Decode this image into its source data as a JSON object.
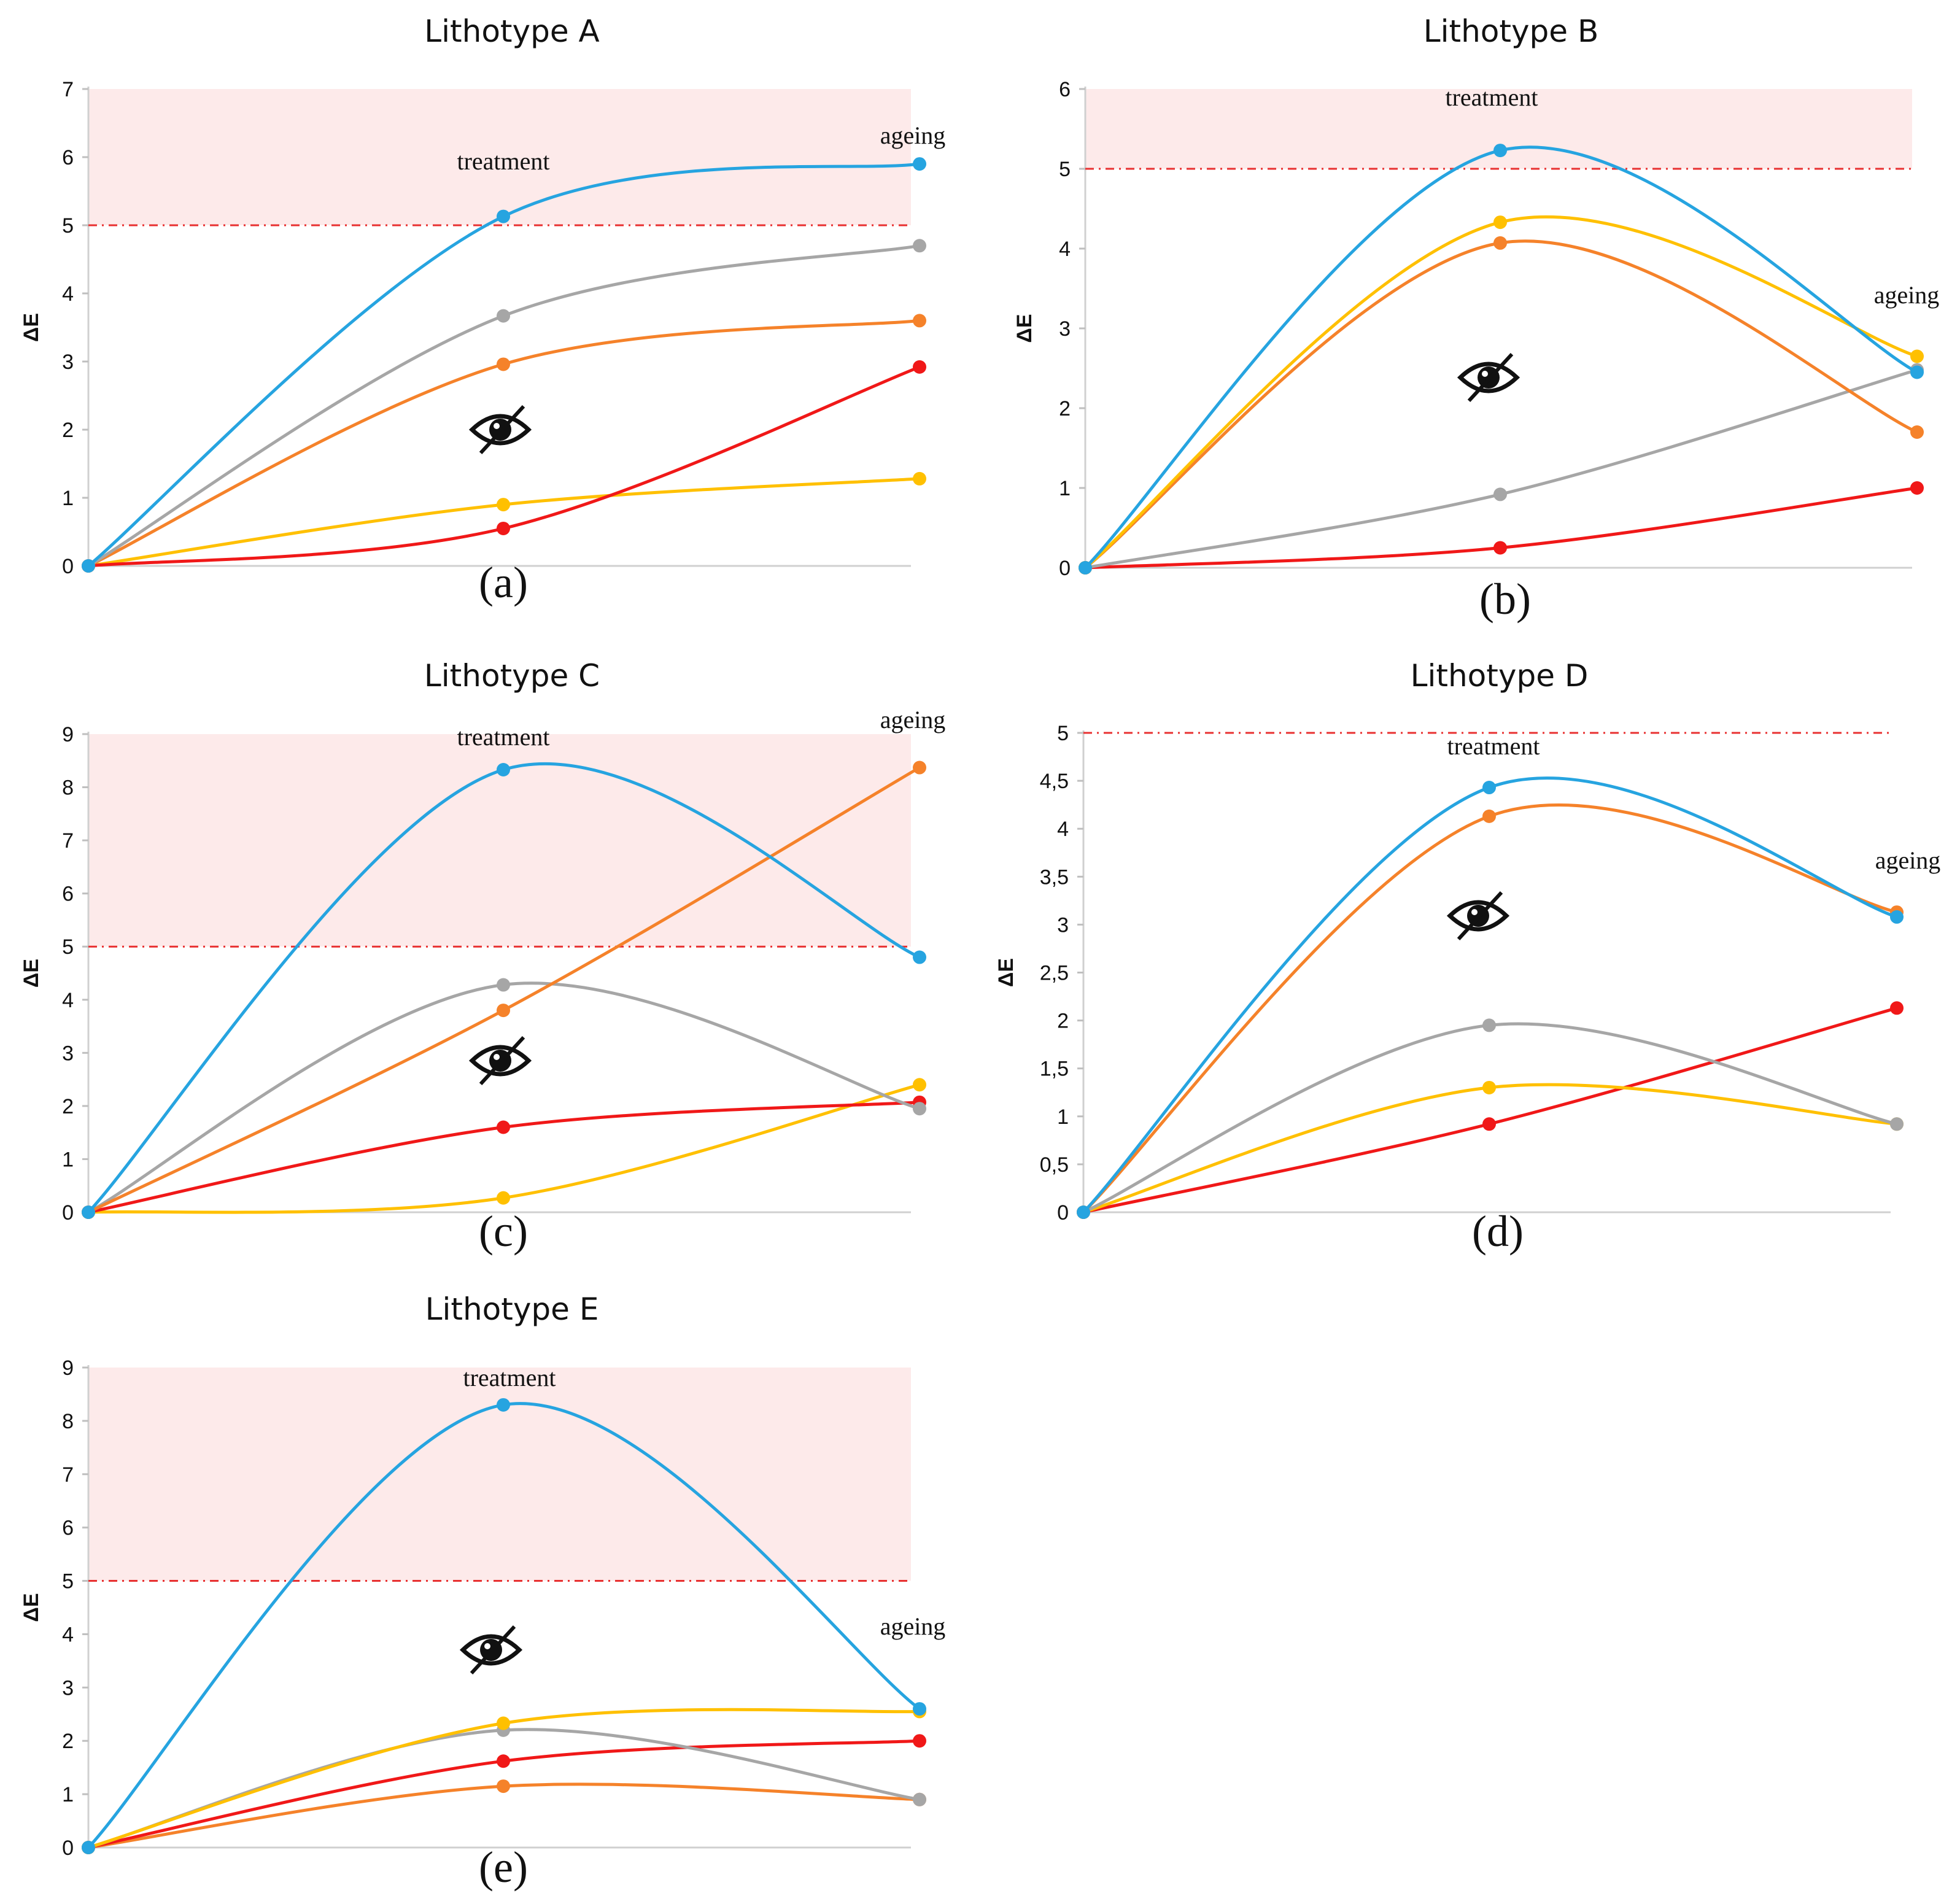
{
  "colors": {
    "blue": "#26a4e0",
    "grey": "#a6a6a6",
    "orange": "#f5822a",
    "red": "#f01818",
    "yellow": "#ffc000",
    "threshold": "#e83030",
    "zone": "#fdeaea"
  },
  "chart_data": [
    {
      "type": "line",
      "title": "Lithotype A",
      "panel_label": "(a)",
      "ylabel": "ΔE",
      "ylim": [
        0,
        7
      ],
      "yticks": [
        "0",
        "1",
        "2",
        "3",
        "4",
        "5",
        "6",
        "7"
      ],
      "threshold": 5,
      "zone": [
        5,
        7
      ],
      "x": [
        0,
        1,
        2
      ],
      "annotations": {
        "treatment": "treatment",
        "ageing": "ageing"
      },
      "icon": "eye-slash-icon",
      "series": [
        {
          "color": "blue",
          "values": [
            0,
            5.13,
            5.9
          ]
        },
        {
          "color": "grey",
          "values": [
            0,
            3.67,
            4.7
          ]
        },
        {
          "color": "orange",
          "values": [
            0,
            2.96,
            3.6
          ]
        },
        {
          "color": "red",
          "values": [
            0,
            0.55,
            2.92
          ]
        },
        {
          "color": "yellow",
          "values": [
            0,
            0.9,
            1.28
          ]
        }
      ]
    },
    {
      "type": "line",
      "title": "Lithotype B",
      "panel_label": "(b)",
      "ylabel": "ΔE",
      "ylim": [
        0,
        6
      ],
      "yticks": [
        "0",
        "1",
        "2",
        "3",
        "4",
        "5",
        "6"
      ],
      "threshold": 5,
      "zone": [
        5,
        6
      ],
      "x": [
        0,
        1,
        2
      ],
      "annotations": {
        "treatment": "treatment",
        "ageing": "ageing"
      },
      "icon": "eye-slash-icon",
      "series": [
        {
          "color": "blue",
          "values": [
            0,
            5.23,
            2.45
          ]
        },
        {
          "color": "yellow",
          "values": [
            0,
            4.33,
            2.65
          ]
        },
        {
          "color": "orange",
          "values": [
            0,
            4.07,
            1.7
          ]
        },
        {
          "color": "grey",
          "values": [
            0,
            0.92,
            2.48
          ]
        },
        {
          "color": "red",
          "values": [
            0,
            0.25,
            1.0
          ]
        }
      ]
    },
    {
      "type": "line",
      "title": "Lithotype C",
      "panel_label": "(c)",
      "ylabel": "ΔE",
      "ylim": [
        0,
        9
      ],
      "yticks": [
        "0",
        "1",
        "2",
        "3",
        "4",
        "5",
        "6",
        "7",
        "8",
        "9"
      ],
      "threshold": 5,
      "zone": [
        5,
        9
      ],
      "x": [
        0,
        1,
        2
      ],
      "annotations": {
        "treatment": "treatment",
        "ageing": "ageing"
      },
      "icon": "eye-slash-icon",
      "series": [
        {
          "color": "blue",
          "values": [
            0,
            8.33,
            4.8
          ]
        },
        {
          "color": "orange",
          "values": [
            0,
            3.8,
            8.37
          ]
        },
        {
          "color": "grey",
          "values": [
            0,
            4.28,
            1.95
          ]
        },
        {
          "color": "red",
          "values": [
            0,
            1.6,
            2.07
          ]
        },
        {
          "color": "yellow",
          "values": [
            0,
            0.27,
            2.4
          ]
        }
      ]
    },
    {
      "type": "line",
      "title": "Lithotype D",
      "panel_label": "(d)",
      "ylabel": "ΔE",
      "ylim": [
        0,
        5
      ],
      "yticks": [
        "0",
        "0,5",
        "1",
        "1,5",
        "2",
        "2,5",
        "3",
        "3,5",
        "4",
        "4,5",
        "5"
      ],
      "threshold": 5,
      "zone": null,
      "x": [
        0,
        1,
        2
      ],
      "annotations": {
        "treatment": "treatment",
        "ageing": "ageing"
      },
      "icon": "eye-slash-icon",
      "series": [
        {
          "color": "blue",
          "values": [
            0,
            4.43,
            3.08
          ]
        },
        {
          "color": "orange",
          "values": [
            0,
            4.13,
            3.13
          ]
        },
        {
          "color": "grey",
          "values": [
            0,
            1.95,
            0.92
          ]
        },
        {
          "color": "yellow",
          "values": [
            0,
            1.3,
            0.92
          ]
        },
        {
          "color": "red",
          "values": [
            0,
            0.92,
            2.13
          ]
        }
      ]
    },
    {
      "type": "line",
      "title": "Lithotype E",
      "panel_label": "(e)",
      "ylabel": "ΔE",
      "ylim": [
        0,
        9
      ],
      "yticks": [
        "0",
        "1",
        "2",
        "3",
        "4",
        "5",
        "6",
        "7",
        "8",
        "9"
      ],
      "threshold": 5,
      "zone": [
        5,
        9
      ],
      "x": [
        0,
        1,
        2
      ],
      "annotations": {
        "treatment": "treatment",
        "ageing": "ageing"
      },
      "icon": "eye-slash-icon",
      "series": [
        {
          "color": "blue",
          "values": [
            0,
            8.3,
            2.6
          ]
        },
        {
          "color": "yellow",
          "values": [
            0,
            2.33,
            2.55
          ]
        },
        {
          "color": "grey",
          "values": [
            0,
            2.2,
            0.9
          ]
        },
        {
          "color": "red",
          "values": [
            0,
            1.62,
            2.0
          ]
        },
        {
          "color": "orange",
          "values": [
            0,
            1.15,
            0.9
          ]
        }
      ]
    }
  ]
}
